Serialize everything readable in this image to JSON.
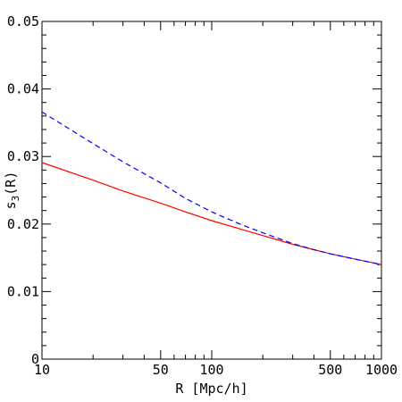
{
  "chart_data": {
    "type": "line",
    "xlabel": "R [Mpc/h]",
    "ylabel": "s_3(R)",
    "ylabel_main": "s",
    "ylabel_sub": "3",
    "ylabel_tail": "(R)",
    "xscale": "log",
    "xlim": [
      10,
      1000
    ],
    "ylim": [
      0,
      0.05
    ],
    "xticks_major": [
      10,
      50,
      100,
      500,
      1000
    ],
    "xtick_labels": [
      "10",
      "50",
      "100",
      "500",
      "1000"
    ],
    "yticks_major": [
      0,
      0.01,
      0.02,
      0.03,
      0.04,
      0.05
    ],
    "ytick_labels": [
      "0",
      "0.01",
      "0.02",
      "0.03",
      "0.04",
      "0.05"
    ],
    "grid": false,
    "series": [
      {
        "color": "#ff0000",
        "dash": "solid",
        "x": [
          10,
          20,
          30,
          50,
          70,
          100,
          150,
          200,
          300,
          400,
          500,
          700,
          1000
        ],
        "y": [
          0.0291,
          0.0265,
          0.0249,
          0.0231,
          0.0218,
          0.0205,
          0.0192,
          0.0183,
          0.017,
          0.0162,
          0.0156,
          0.0148,
          0.014
        ]
      },
      {
        "color": "#0000ff",
        "dash": "dashed",
        "x": [
          10,
          20,
          30,
          50,
          70,
          100,
          150,
          200,
          300,
          400,
          500,
          700,
          1000
        ],
        "y": [
          0.0366,
          0.0319,
          0.0292,
          0.0261,
          0.0238,
          0.0218,
          0.0199,
          0.0187,
          0.0171,
          0.0162,
          0.0156,
          0.0148,
          0.014
        ]
      }
    ]
  }
}
